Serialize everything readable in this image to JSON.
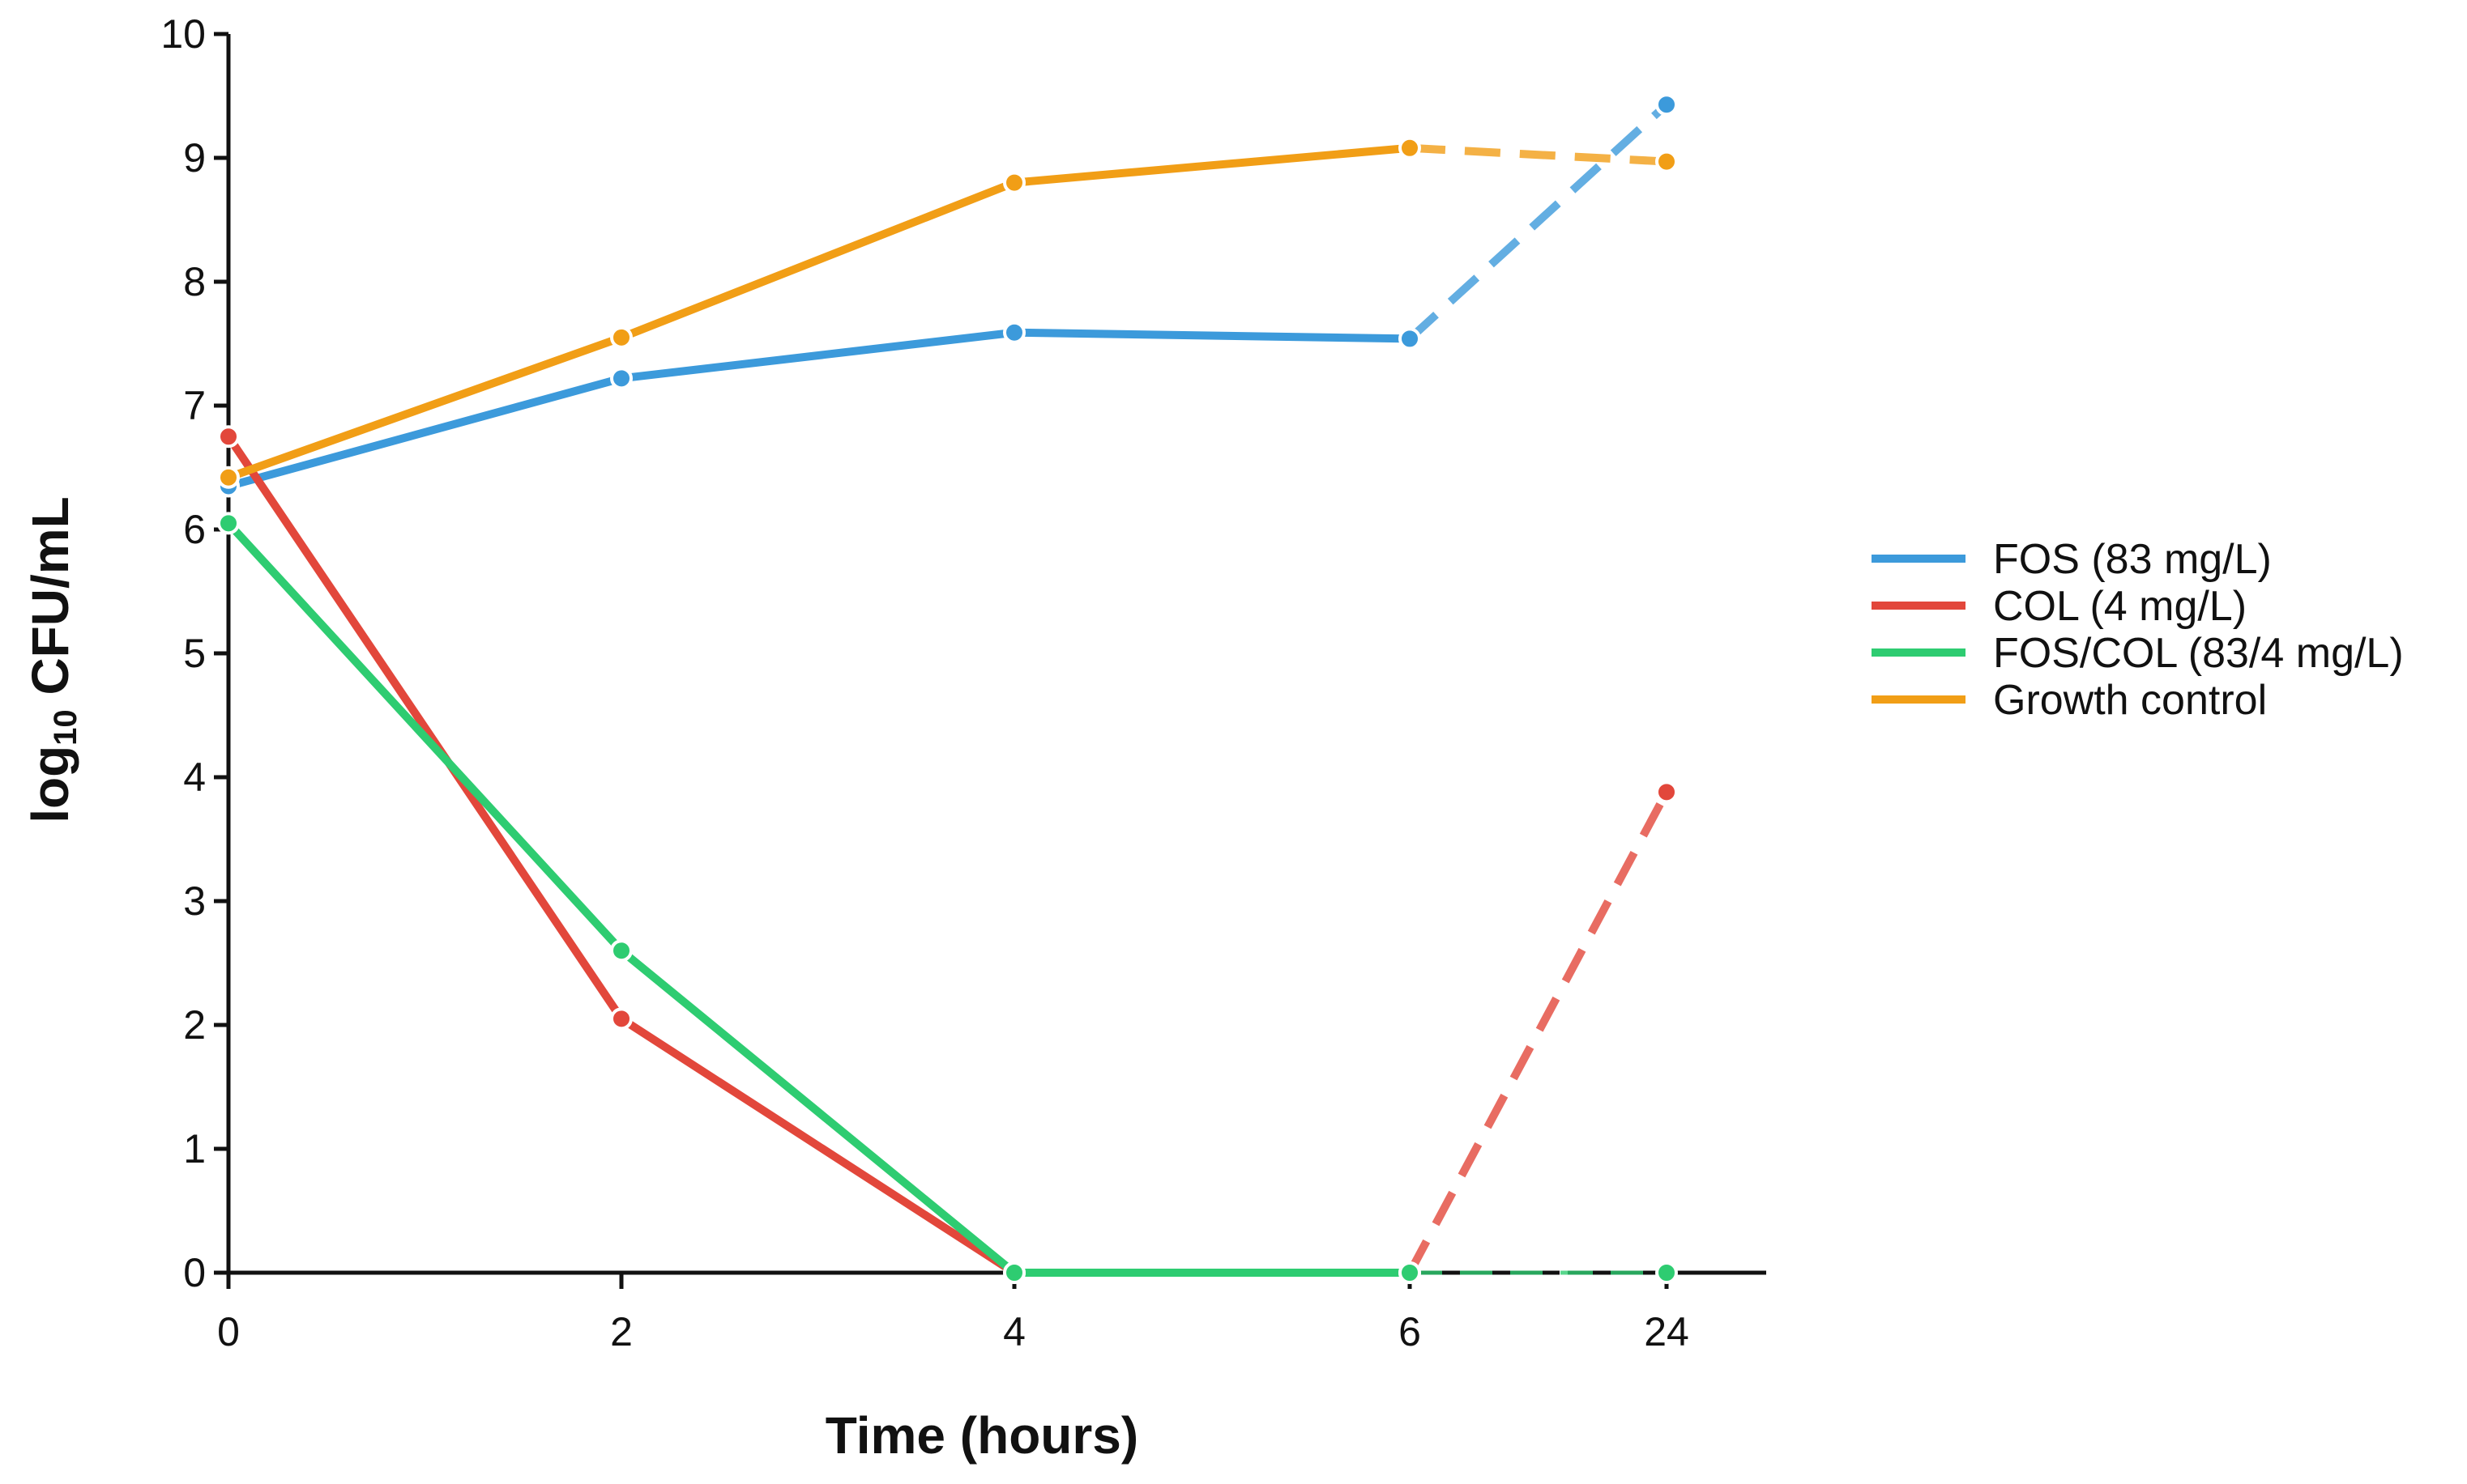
{
  "chart_data": {
    "type": "line",
    "title": "",
    "xlabel": "Time (hours)",
    "ylabel_main": "log",
    "ylabel_sub": "10",
    "ylabel_rest": " CFU/mL",
    "x": [
      "0",
      "2",
      "4",
      "6",
      "24"
    ],
    "yticks": [
      "0",
      "1",
      "2",
      "3",
      "4",
      "5",
      "6",
      "7",
      "8",
      "9",
      "10"
    ],
    "ylim": [
      0,
      10
    ],
    "dashed_from_index": 3,
    "series": [
      {
        "name": "FOS (83 mg/L)",
        "color": "#3C9ADB",
        "values": [
          6.35,
          7.22,
          7.59,
          7.54,
          9.43
        ]
      },
      {
        "name": "COL (4 mg/L)",
        "color": "#E2473B",
        "values": [
          6.75,
          2.05,
          0,
          0,
          3.88
        ]
      },
      {
        "name": "FOS/COL (83/4 mg/L)",
        "color": "#2ECC71",
        "values": [
          6.05,
          2.6,
          0,
          0,
          0
        ]
      },
      {
        "name": "Growth control",
        "color": "#F19E16",
        "values": [
          6.42,
          7.55,
          8.8,
          9.08,
          8.97
        ]
      }
    ],
    "legend_position": "right"
  }
}
